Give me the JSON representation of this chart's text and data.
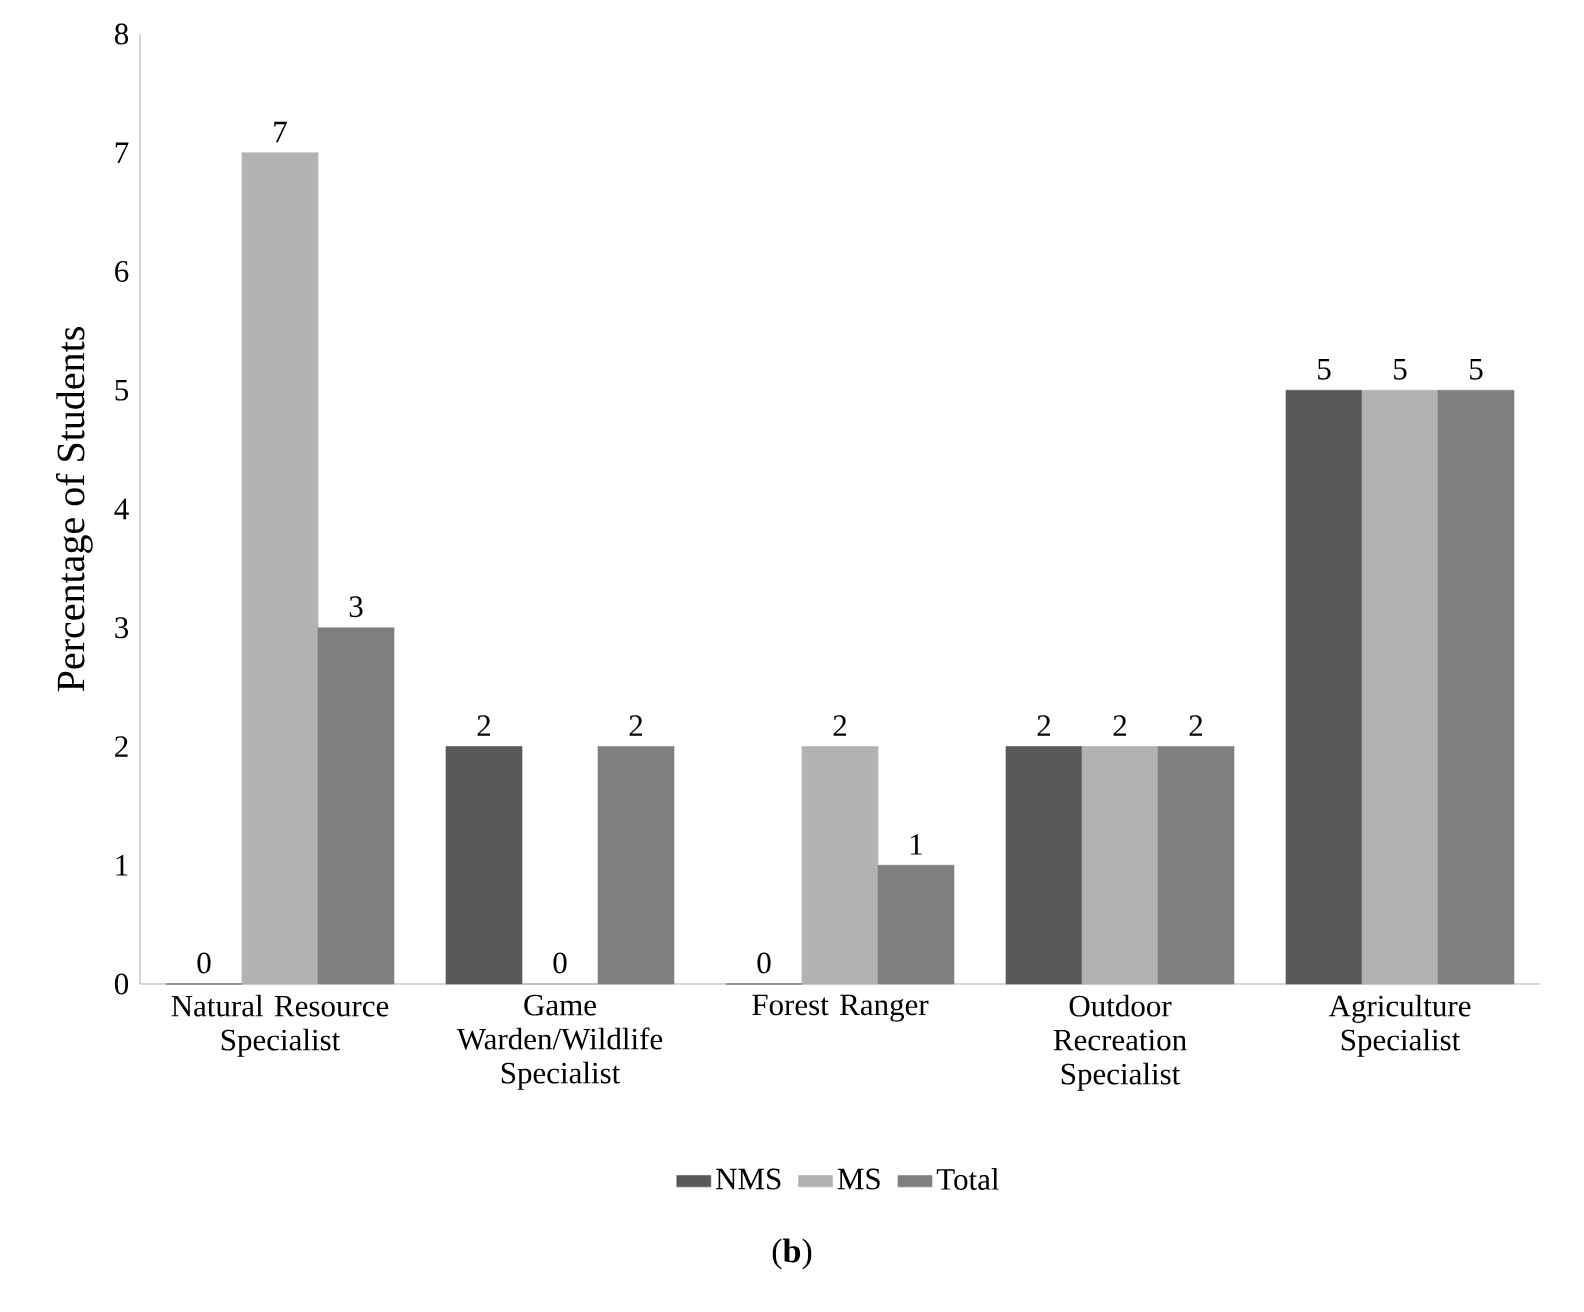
{
  "chart_data": {
    "type": "bar",
    "ylabel": "Percentage of Students",
    "categories": [
      "Natural Resource Specialist",
      "Game Warden/Wildlife Specialist",
      "Forest Ranger",
      "Outdoor Recreation Specialist",
      "Agriculture Specialist"
    ],
    "series": [
      {
        "name": "NMS",
        "color": "#595959",
        "values": [
          0,
          2,
          0,
          2,
          5
        ]
      },
      {
        "name": "MS",
        "color": "#b2b2b2",
        "values": [
          7,
          0,
          2,
          2,
          5
        ]
      },
      {
        "name": "Total",
        "color": "#7f7f7f",
        "values": [
          3,
          2,
          1,
          2,
          5
        ]
      }
    ],
    "ylim": [
      0,
      8
    ],
    "yticks": [
      0,
      1,
      2,
      3,
      4,
      5,
      6,
      7,
      8
    ],
    "data_labels": true,
    "legend": "bottom",
    "grid": false,
    "annotations": [
      "(**b**)"
    ]
  }
}
